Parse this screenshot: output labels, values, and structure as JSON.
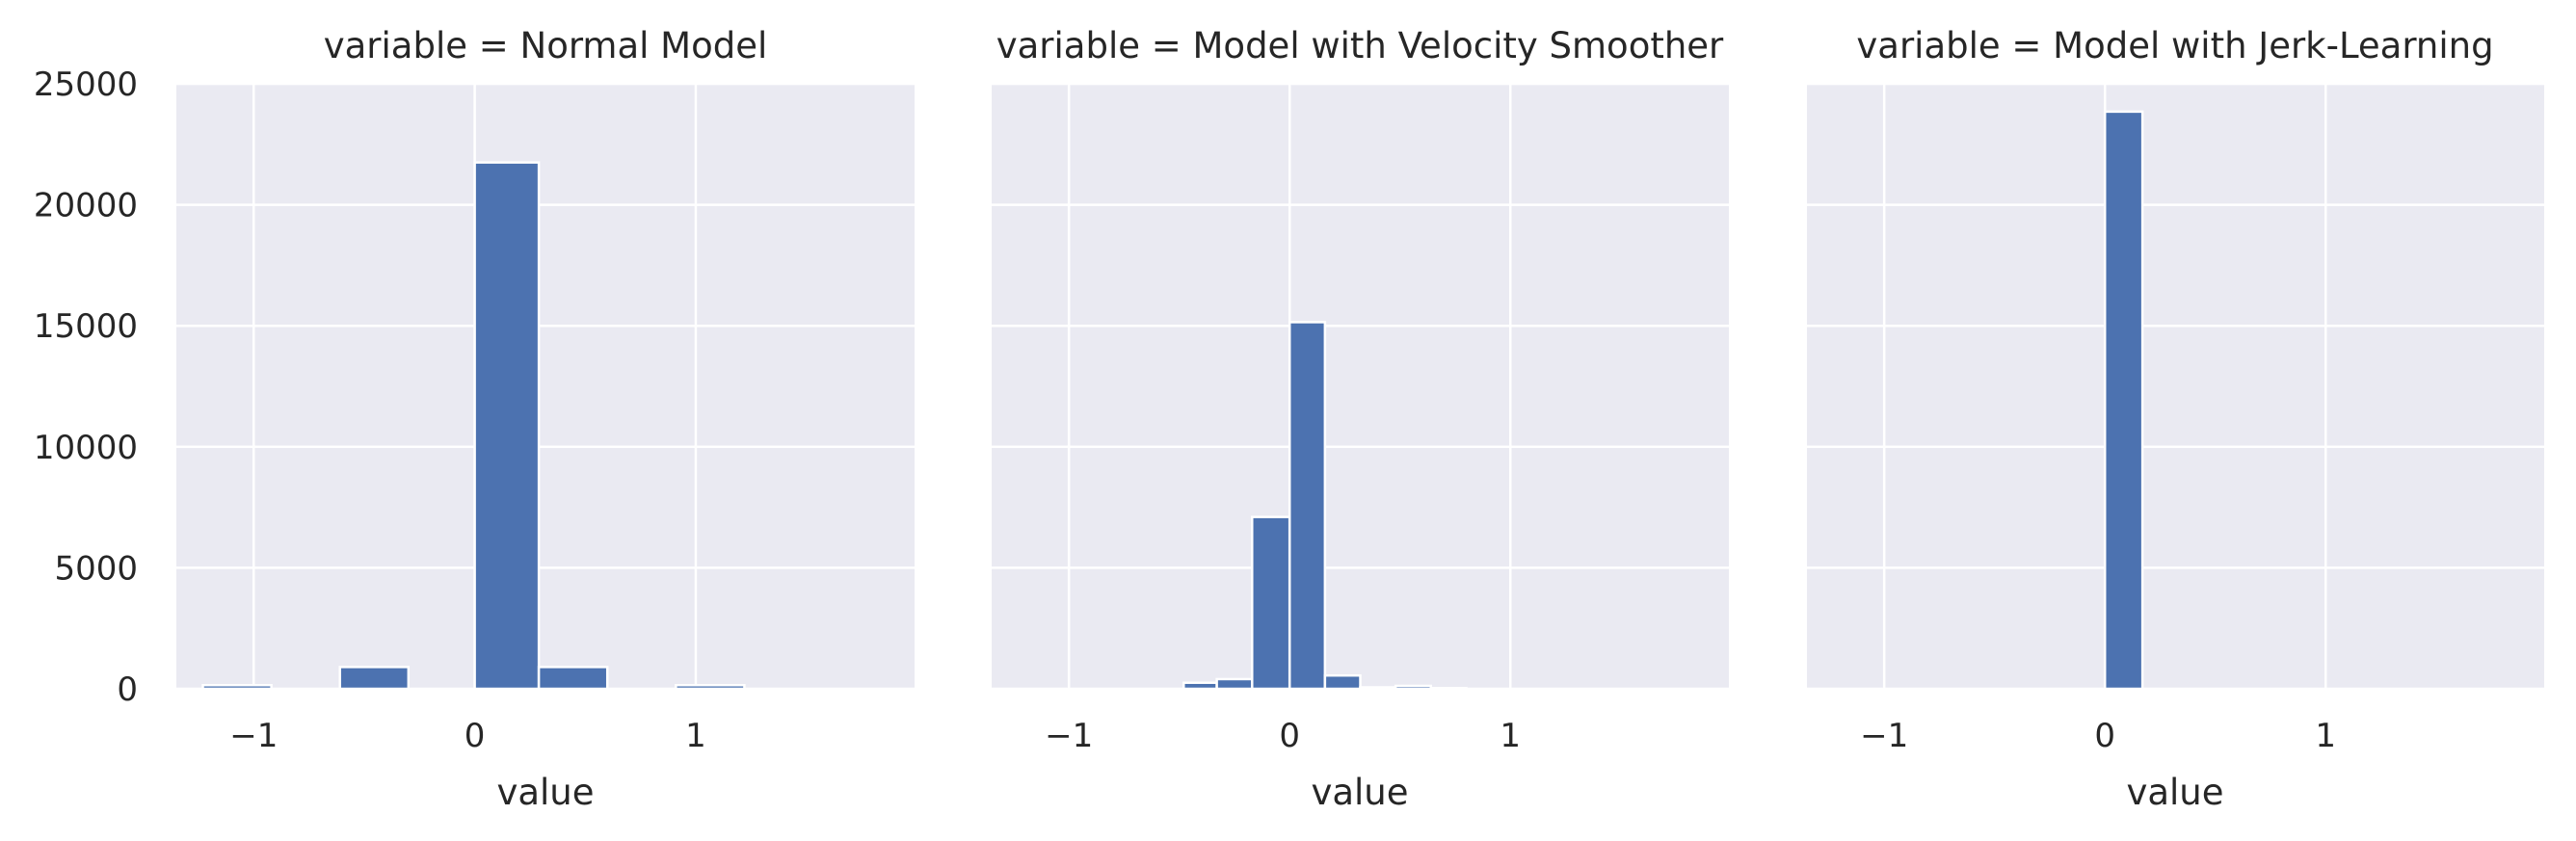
{
  "colors": {
    "background": "#eaeaf2",
    "grid": "#ffffff",
    "bar": "#4c72b0",
    "bar_edge": "#ffffff",
    "text": "#262626"
  },
  "chart_data": [
    {
      "type": "bar",
      "title": "variable = Normal Model",
      "xlabel": "value",
      "ylabel": "",
      "xlim": [
        -1.35,
        1.99
      ],
      "ylim": [
        0,
        25000
      ],
      "xticks": [
        -1,
        0,
        1
      ],
      "xtick_labels": [
        "−1",
        "0",
        "1"
      ],
      "yticks": [
        0,
        5000,
        10000,
        15000,
        20000,
        25000
      ],
      "ytick_labels": [
        "0",
        "5000",
        "10000",
        "15000",
        "20000",
        "25000"
      ],
      "grid": true,
      "bins": [
        {
          "x0": -1.23,
          "x1": -0.92,
          "value": 150
        },
        {
          "x0": -0.92,
          "x1": -0.61,
          "value": 0
        },
        {
          "x0": -0.61,
          "x1": -0.3,
          "value": 900
        },
        {
          "x0": -0.3,
          "x1": 0.0,
          "value": 0
        },
        {
          "x0": 0.0,
          "x1": 0.29,
          "value": 21750
        },
        {
          "x0": 0.29,
          "x1": 0.6,
          "value": 900
        },
        {
          "x0": 0.6,
          "x1": 0.91,
          "value": 0
        },
        {
          "x0": 0.91,
          "x1": 1.22,
          "value": 150
        },
        {
          "x0": 1.22,
          "x1": 1.53,
          "value": 0
        },
        {
          "x0": 1.53,
          "x1": 1.84,
          "value": 0
        }
      ]
    },
    {
      "type": "bar",
      "title": "variable = Model with Velocity Smoother",
      "xlabel": "value",
      "ylabel": "",
      "xlim": [
        -1.35,
        1.99
      ],
      "ylim": [
        0,
        25000
      ],
      "xticks": [
        -1,
        0,
        1
      ],
      "xtick_labels": [
        "−1",
        "0",
        "1"
      ],
      "yticks": [
        0,
        5000,
        10000,
        15000,
        20000,
        25000
      ],
      "grid": true,
      "bins": [
        {
          "x0": -0.48,
          "x1": -0.33,
          "value": 250
        },
        {
          "x0": -0.33,
          "x1": -0.17,
          "value": 400
        },
        {
          "x0": -0.17,
          "x1": 0.0,
          "value": 7100
        },
        {
          "x0": 0.0,
          "x1": 0.16,
          "value": 15150
        },
        {
          "x0": 0.16,
          "x1": 0.32,
          "value": 550
        },
        {
          "x0": 0.32,
          "x1": 0.48,
          "value": 60
        },
        {
          "x0": 0.48,
          "x1": 0.64,
          "value": 120
        },
        {
          "x0": 0.64,
          "x1": 0.8,
          "value": 30
        }
      ]
    },
    {
      "type": "bar",
      "title": "variable = Model with Jerk-Learning",
      "xlabel": "value",
      "ylabel": "",
      "xlim": [
        -1.35,
        1.99
      ],
      "ylim": [
        0,
        25000
      ],
      "xticks": [
        -1,
        0,
        1
      ],
      "xtick_labels": [
        "−1",
        "0",
        "1"
      ],
      "yticks": [
        0,
        5000,
        10000,
        15000,
        20000,
        25000
      ],
      "grid": true,
      "bins": [
        {
          "x0": 0.0,
          "x1": 0.17,
          "value": 23850
        }
      ]
    }
  ]
}
